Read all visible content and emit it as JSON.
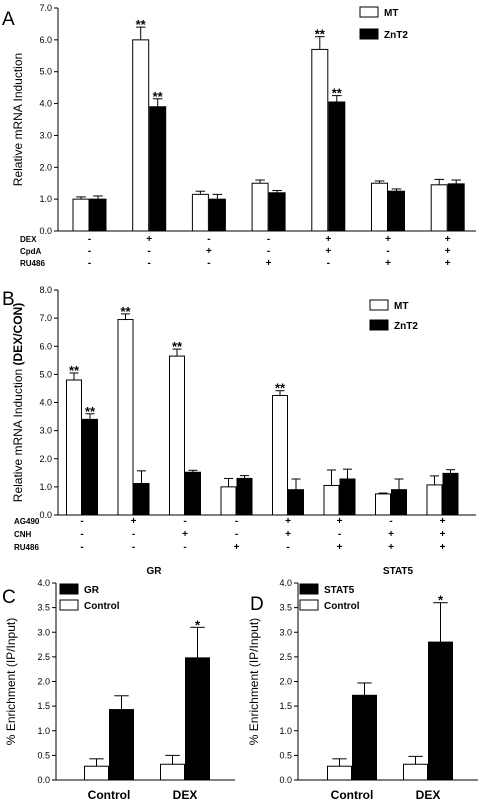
{
  "chart_data": [
    {
      "panel": "A",
      "type": "bar",
      "ylabel": "Relative mRNA Induction",
      "ylim": [
        0,
        7
      ],
      "yticks": [
        "0.0",
        "1.0",
        "2.0",
        "3.0",
        "4.0",
        "5.0",
        "6.0",
        "7.0"
      ],
      "series": [
        {
          "name": "MT",
          "color": "#ffffff",
          "values": [
            1.0,
            6.0,
            1.15,
            1.5,
            5.7,
            1.5,
            1.45
          ],
          "errors": [
            0.07,
            0.4,
            0.1,
            0.1,
            0.4,
            0.07,
            0.17
          ],
          "sig": [
            "",
            "**",
            "",
            "",
            "**",
            "",
            ""
          ]
        },
        {
          "name": "ZnT2",
          "color": "#000000",
          "values": [
            1.0,
            3.9,
            1.0,
            1.2,
            4.05,
            1.25,
            1.48
          ],
          "errors": [
            0.1,
            0.25,
            0.15,
            0.07,
            0.2,
            0.07,
            0.12
          ],
          "sig": [
            "",
            "**",
            "",
            "",
            "**",
            "",
            ""
          ]
        }
      ],
      "treatments": [
        {
          "name": "DEX",
          "signs": [
            "-",
            "+",
            "-",
            "-",
            "+",
            "+",
            "+"
          ]
        },
        {
          "name": "CpdA",
          "signs": [
            "-",
            "-",
            "+",
            "-",
            "+",
            "-",
            "+"
          ]
        },
        {
          "name": "RU486",
          "signs": [
            "-",
            "-",
            "-",
            "+",
            "-",
            "+",
            "+"
          ]
        }
      ]
    },
    {
      "panel": "B",
      "type": "bar",
      "ylabel_prefix": "Relative mRNA Induction ",
      "ylabel_bold": "(DEX/CON)",
      "ylim": [
        0,
        8
      ],
      "yticks": [
        "0.0",
        "1.0",
        "2.0",
        "3.0",
        "4.0",
        "5.0",
        "6.0",
        "7.0",
        "8.0"
      ],
      "series": [
        {
          "name": "MT",
          "color": "#ffffff",
          "values": [
            4.8,
            6.95,
            5.65,
            1.0,
            4.25,
            1.05,
            0.75,
            1.07
          ],
          "errors": [
            0.25,
            0.2,
            0.25,
            0.3,
            0.17,
            0.55,
            0.03,
            0.32
          ],
          "sig": [
            "**",
            "**",
            "**",
            "",
            "**",
            "",
            "",
            ""
          ]
        },
        {
          "name": "ZnT2",
          "color": "#000000",
          "values": [
            3.4,
            1.12,
            1.52,
            1.3,
            0.9,
            1.28,
            0.9,
            1.48
          ],
          "errors": [
            0.2,
            0.45,
            0.07,
            0.1,
            0.38,
            0.35,
            0.38,
            0.13
          ],
          "sig": [
            "**",
            "",
            "",
            "",
            "",
            "",
            "",
            ""
          ]
        }
      ],
      "treatments": [
        {
          "name": "AG490",
          "signs": [
            "-",
            "+",
            "-",
            "-",
            "+",
            "+",
            "-",
            "+"
          ]
        },
        {
          "name": "CNH",
          "signs": [
            "-",
            "-",
            "+",
            "-",
            "+",
            "-",
            "+",
            "+"
          ]
        },
        {
          "name": "RU486",
          "signs": [
            "-",
            "-",
            "-",
            "+",
            "-",
            "+",
            "+",
            "+"
          ]
        }
      ]
    },
    {
      "panel": "C",
      "type": "bar",
      "title": "GR",
      "ylabel": "% Enrichment (IP/Input)",
      "ylim": [
        0,
        4
      ],
      "yticks": [
        "0.0",
        "0.5",
        "1.0",
        "1.5",
        "2.0",
        "2.5",
        "3.0",
        "3.5",
        "4.0"
      ],
      "categories": [
        "Control",
        "DEX"
      ],
      "series": [
        {
          "name": "GR",
          "color": "#000000",
          "values": [
            1.43,
            2.48
          ],
          "errors": [
            0.28,
            0.62
          ],
          "sig": [
            "",
            "*"
          ]
        },
        {
          "name": "Control",
          "color": "#ffffff",
          "values": [
            0.28,
            0.32
          ],
          "errors": [
            0.15,
            0.18
          ],
          "sig": [
            "",
            ""
          ]
        }
      ]
    },
    {
      "panel": "D",
      "type": "bar",
      "title": "STAT5",
      "ylabel": "% Enrichment (IP/Input)",
      "ylim": [
        0,
        4
      ],
      "yticks": [
        "0.0",
        "0.5",
        "1.0",
        "1.5",
        "2.0",
        "2.5",
        "3.0",
        "3.5",
        "4.0"
      ],
      "categories": [
        "Control",
        "DEX"
      ],
      "series": [
        {
          "name": "STAT5",
          "color": "#000000",
          "values": [
            1.72,
            2.8
          ],
          "errors": [
            0.25,
            0.8
          ],
          "sig": [
            "",
            "*"
          ]
        },
        {
          "name": "Control",
          "color": "#ffffff",
          "values": [
            0.28,
            0.32
          ],
          "errors": [
            0.15,
            0.16
          ],
          "sig": [
            "",
            ""
          ]
        }
      ]
    }
  ]
}
